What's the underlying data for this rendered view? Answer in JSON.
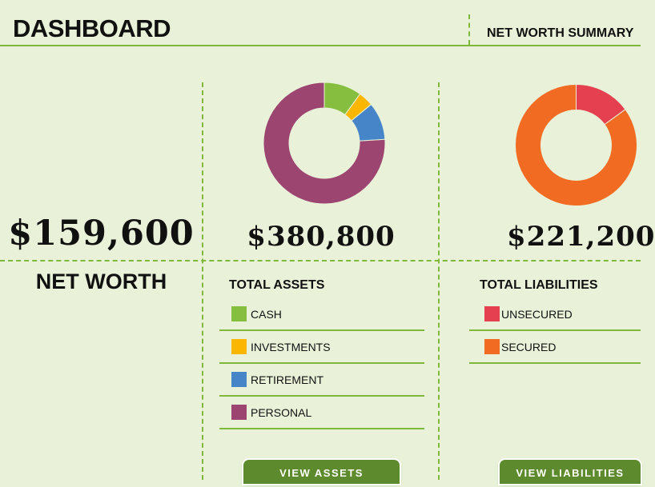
{
  "header": {
    "title": "DASHBOARD",
    "subtitle": "NET WORTH SUMMARY"
  },
  "net_worth": {
    "value": "$159,600",
    "label": "NET WORTH"
  },
  "assets": {
    "total": "$380,800",
    "title": "TOTAL ASSETS",
    "items": [
      {
        "label": "CASH",
        "color": "#86bf3f"
      },
      {
        "label": "INVESTMENTS",
        "color": "#fbb700"
      },
      {
        "label": "RETIREMENT",
        "color": "#4686c8"
      },
      {
        "label": "PERSONAL",
        "color": "#9b4570"
      }
    ],
    "button": "VIEW ASSETS"
  },
  "liabilities": {
    "total": "$221,200",
    "title": "TOTAL LIABILITIES",
    "items": [
      {
        "label": "UNSECURED",
        "color": "#e4404f"
      },
      {
        "label": "SECURED",
        "color": "#f26b22"
      }
    ],
    "button": "VIEW LIABILITIES"
  },
  "chart_data": [
    {
      "type": "pie",
      "categories": [
        "CASH",
        "INVESTMENTS",
        "RETIREMENT",
        "PERSONAL"
      ],
      "values": [
        10,
        4,
        10,
        76
      ],
      "colors": [
        "#86bf3f",
        "#fbb700",
        "#4686c8",
        "#9b4570"
      ]
    },
    {
      "type": "pie",
      "categories": [
        "UNSECURED",
        "SECURED"
      ],
      "values": [
        15,
        85
      ],
      "colors": [
        "#e4404f",
        "#f26b22"
      ]
    }
  ]
}
